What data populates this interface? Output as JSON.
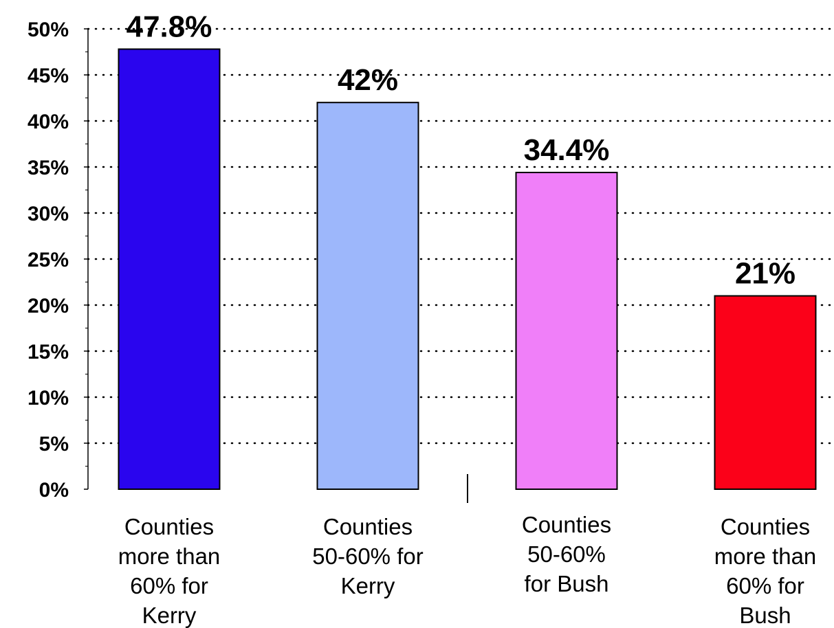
{
  "chart_data": {
    "type": "bar",
    "title": "",
    "xlabel": "",
    "ylabel": "",
    "ylim": [
      0,
      50
    ],
    "ytick_step": 5,
    "ytick_labels": [
      "0%",
      "5%",
      "10%",
      "15%",
      "20%",
      "25%",
      "30%",
      "35%",
      "40%",
      "45%",
      "50%"
    ],
    "grid": "horizontal dotted",
    "legend": "none",
    "categories": [
      [
        "Counties",
        "more than",
        "60% for",
        "Kerry"
      ],
      [
        "Counties",
        "50-60% for",
        "Kerry"
      ],
      [
        "Counties",
        "50-60%",
        "for Bush"
      ],
      [
        "Counties",
        "more than",
        "60% for",
        "Bush"
      ]
    ],
    "values": [
      47.8,
      42,
      34.4,
      21
    ],
    "value_labels": [
      "47.8%",
      "42%",
      "34.4%",
      "21%"
    ],
    "colors": [
      "#2a05ee",
      "#9db7fb",
      "#f07ff9",
      "#fb0119"
    ]
  }
}
